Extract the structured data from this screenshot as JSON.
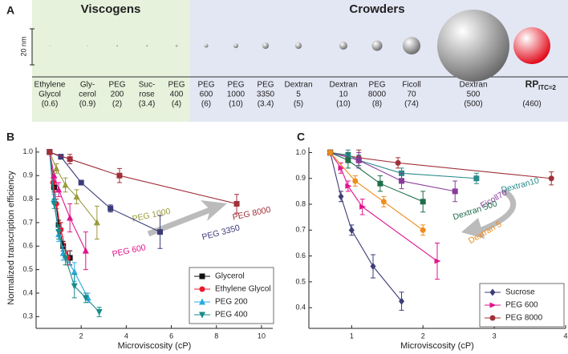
{
  "panel_a": {
    "label": "A",
    "viscogens": "Viscogens",
    "crowders": "Crowders",
    "scale_bar": {
      "label": "20 nm",
      "value": 20
    },
    "items": [
      {
        "lines": [
          "Ethylene",
          "Glycol"
        ],
        "mw": "(0.6)",
        "radius_nm": 0.25,
        "color": "#666666"
      },
      {
        "lines": [
          "Gly-",
          "cerol"
        ],
        "mw": "(0.9)",
        "radius_nm": 0.3,
        "color": "#666666"
      },
      {
        "lines": [
          "PEG",
          "200"
        ],
        "mw": "(2)",
        "radius_nm": 0.45,
        "color": "#666666"
      },
      {
        "lines": [
          "Suc-",
          "rose"
        ],
        "mw": "(3.4)",
        "radius_nm": 0.5,
        "color": "#666666"
      },
      {
        "lines": [
          "PEG",
          "400"
        ],
        "mw": "(4)",
        "radius_nm": 0.6,
        "color": "#666666"
      },
      {
        "lines": [
          "PEG",
          "600"
        ],
        "mw": "(6)",
        "radius_nm": 1.1,
        "color": "#666666"
      },
      {
        "lines": [
          "PEG",
          "1000"
        ],
        "mw": "(10)",
        "radius_nm": 1.35,
        "color": "#666666"
      },
      {
        "lines": [
          "PEG",
          "3350"
        ],
        "mw": "(3.4)",
        "radius_nm": 1.8,
        "color": "#666666"
      },
      {
        "lines": [
          "Dextran",
          "5"
        ],
        "mw": "(5)",
        "radius_nm": 1.8,
        "color": "#666666"
      },
      {
        "lines": [
          "Dextran",
          "10"
        ],
        "mw": "(10)",
        "radius_nm": 2.2,
        "color": "#666666"
      },
      {
        "lines": [
          "PEG",
          "8000"
        ],
        "mw": "(8)",
        "radius_nm": 2.9,
        "color": "#666666"
      },
      {
        "lines": [
          "Ficoll",
          "70"
        ],
        "mw": "(74)",
        "radius_nm": 4.9,
        "color": "#666666"
      },
      {
        "lines": [
          "Dextran",
          "500"
        ],
        "mw": "(500)",
        "radius_nm": 20,
        "color": "#666666"
      },
      {
        "lines": [
          "RP"
        ],
        "sub": "ITC=2",
        "mw": "(460)",
        "radius_nm": 10.2,
        "color": "#e00010"
      }
    ]
  },
  "chart_data": [
    {
      "type": "line",
      "panel": "B",
      "ylabel": "Normalized transcription efficiency",
      "xlabel": "Microviscosity (cP)",
      "xlim": [
        0,
        10.5
      ],
      "ylim": [
        0.25,
        1.02
      ],
      "xticks": [
        2,
        4,
        6,
        8,
        10
      ],
      "yticks": [
        0.3,
        0.4,
        0.5,
        0.6,
        0.7,
        0.8,
        0.9,
        {
          "value": 1,
          "label": "1.0"
        }
      ],
      "series": [
        {
          "name": "Glycerol",
          "color": "#111111",
          "marker": "square",
          "x": [
            0.6,
            0.8,
            1.0,
            1.2,
            1.5
          ],
          "values": [
            1.0,
            0.85,
            0.69,
            0.6,
            0.55
          ],
          "errors": [
            0.01,
            0.02,
            0.02,
            0.02,
            0.03
          ]
        },
        {
          "name": "Ethylene Glycol",
          "color": "#e8192c",
          "marker": "circle",
          "x": [
            0.6,
            0.75,
            0.9,
            1.1,
            1.4
          ],
          "values": [
            1.0,
            0.87,
            0.78,
            0.67,
            0.55
          ],
          "errors": [
            0.01,
            0.02,
            0.02,
            0.03,
            0.03
          ]
        },
        {
          "name": "PEG 200",
          "color": "#29a9e0",
          "marker": "triangle",
          "x": [
            0.6,
            0.8,
            1.0,
            1.2,
            1.7,
            2.3
          ],
          "values": [
            1.0,
            0.8,
            0.65,
            0.57,
            0.49,
            0.38
          ],
          "errors": [
            0.01,
            0.02,
            0.03,
            0.03,
            0.04,
            0.02
          ]
        },
        {
          "name": "PEG 400",
          "color": "#1a8c8c",
          "marker": "down",
          "x": [
            0.6,
            0.8,
            1.0,
            1.3,
            1.7,
            2.2,
            2.8
          ],
          "values": [
            1.0,
            0.78,
            0.66,
            0.55,
            0.43,
            0.38,
            0.32
          ],
          "errors": [
            0.01,
            0.02,
            0.03,
            0.03,
            0.05,
            0.02,
            0.02
          ]
        },
        {
          "annotation": "PEG 600",
          "color": "#e0148c",
          "marker": "triangle",
          "x": [
            0.6,
            0.8,
            1.0,
            1.5,
            2.2
          ],
          "values": [
            1.0,
            0.9,
            0.84,
            0.72,
            0.58
          ],
          "errors": [
            0.01,
            0.02,
            0.03,
            0.06,
            0.08
          ]
        },
        {
          "annotation": "PEG 1000",
          "color": "#9a9a3c",
          "marker": "triangle",
          "x": [
            0.6,
            0.9,
            1.3,
            1.8,
            2.7
          ],
          "values": [
            1.0,
            0.93,
            0.86,
            0.81,
            0.7
          ],
          "errors": [
            0.01,
            0.02,
            0.03,
            0.03,
            0.07
          ]
        },
        {
          "annotation": "PEG 3350",
          "color": "#3b3b7a",
          "marker": "square",
          "x": [
            0.6,
            1.1,
            2.0,
            3.3,
            5.5
          ],
          "values": [
            1.0,
            0.98,
            0.87,
            0.76,
            0.66
          ],
          "errors": [
            0.01,
            0.01,
            0.01,
            0.015,
            0.07
          ]
        },
        {
          "annotation": "PEG 8000",
          "color": "#a0303a",
          "marker": "square",
          "x": [
            0.6,
            1.5,
            3.7,
            8.9
          ],
          "values": [
            1.0,
            0.97,
            0.9,
            0.78
          ],
          "errors": [
            0.01,
            0.02,
            0.03,
            0.04
          ]
        }
      ]
    },
    {
      "type": "line",
      "panel": "C",
      "xlabel": "Microviscosity (cP)",
      "xlim": [
        0.4,
        4.0
      ],
      "ylim": [
        0.32,
        1.02
      ],
      "xticks": [
        1,
        2,
        3,
        4
      ],
      "yticks": [
        0.4,
        0.5,
        0.6,
        0.7,
        0.8,
        0.9,
        {
          "value": 1,
          "label": "1.0"
        }
      ],
      "series": [
        {
          "name": "Sucrose",
          "color": "#3d3d78",
          "marker": "diamond",
          "x": [
            0.7,
            0.85,
            1.0,
            1.3,
            1.7
          ],
          "values": [
            1.0,
            0.83,
            0.7,
            0.56,
            0.425
          ],
          "errors": [
            0.01,
            0.02,
            0.02,
            0.045,
            0.035
          ]
        },
        {
          "name": "PEG 600",
          "color": "#e0148c",
          "marker": "right",
          "x": [
            0.7,
            0.85,
            0.95,
            1.15,
            2.2
          ],
          "values": [
            1.0,
            0.94,
            0.87,
            0.79,
            0.58
          ],
          "errors": [
            0.01,
            0.02,
            0.02,
            0.03,
            0.07
          ]
        },
        {
          "name": "PEG 8000",
          "color": "#a0303a",
          "marker": "circle",
          "x": [
            0.7,
            1.1,
            1.65,
            3.8
          ],
          "values": [
            1.0,
            0.98,
            0.96,
            0.9
          ],
          "errors": [
            0.01,
            0.03,
            0.02,
            0.025
          ]
        },
        {
          "annotation": "Dextran10",
          "color": "#2a8a8a",
          "marker": "square",
          "x": [
            0.7,
            0.95,
            1.1,
            1.7,
            2.75
          ],
          "values": [
            1.0,
            0.99,
            0.97,
            0.92,
            0.9
          ],
          "errors": [
            0.01,
            0.02,
            0.02,
            0.02,
            0.02
          ]
        },
        {
          "annotation": "Ficoll70",
          "color": "#8a3a9a",
          "marker": "square",
          "x": [
            0.7,
            1.1,
            1.7,
            2.45
          ],
          "values": [
            1.0,
            0.97,
            0.89,
            0.85
          ],
          "errors": [
            0.01,
            0.03,
            0.03,
            0.04
          ]
        },
        {
          "annotation": "Dextran 500",
          "color": "#1f6e4a",
          "marker": "square",
          "x": [
            0.7,
            0.95,
            1.4,
            2.0
          ],
          "values": [
            1.0,
            0.97,
            0.88,
            0.81
          ],
          "errors": [
            0.01,
            0.03,
            0.03,
            0.04
          ]
        },
        {
          "annotation": "Dextran 5",
          "color": "#f08c1c",
          "marker": "circle",
          "x": [
            0.7,
            1.05,
            1.45,
            2.0
          ],
          "values": [
            1.0,
            0.89,
            0.81,
            0.7
          ],
          "errors": [
            0.01,
            0.02,
            0.02,
            0.02
          ]
        }
      ]
    }
  ]
}
